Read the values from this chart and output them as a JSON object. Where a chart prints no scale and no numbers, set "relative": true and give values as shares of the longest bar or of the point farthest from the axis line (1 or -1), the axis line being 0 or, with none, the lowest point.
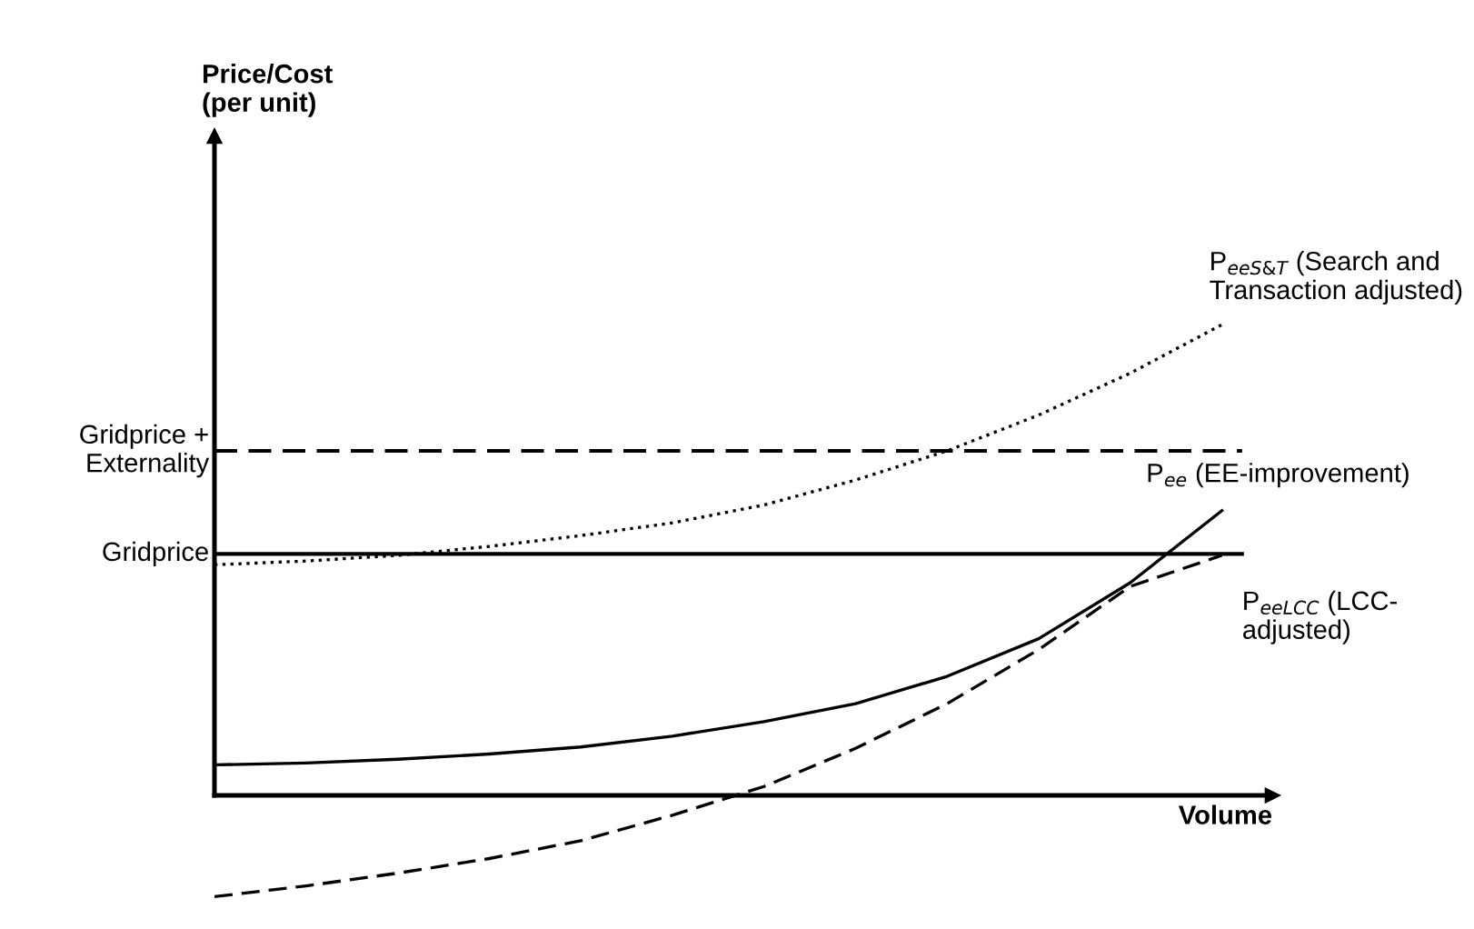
{
  "chart_data": {
    "type": "line",
    "relative": true,
    "xlabel": "Volume",
    "annotations": [
      "Price/Cost\n(per unit)"
    ],
    "categories": [
      null,
      null,
      null,
      null,
      null,
      null,
      null,
      null,
      null,
      null,
      null,
      null
    ],
    "series": [
      {
        "name": "P$_{eeS&T}$ (Search and\nTransaction adjusted)",
        "color": "#000000",
        "line_style": "dotted",
        "values": [
          0.49,
          0.498,
          0.51,
          0.529,
          0.552,
          0.579,
          0.617,
          0.67,
          0.732,
          0.808,
          0.897,
          1.0
        ]
      },
      {
        "name": "P$_{ee}$ (EE-improvement)",
        "color": "#000000",
        "line_style": "solid",
        "values": [
          0.065,
          0.069,
          0.077,
          0.088,
          0.103,
          0.126,
          0.157,
          0.195,
          0.253,
          0.333,
          0.452,
          0.605
        ]
      },
      {
        "name": "P$_{eeLCC}$ (LCC-\nadjusted)",
        "color": "#000000",
        "line_style": "dashed",
        "values": [
          -0.215,
          -0.192,
          -0.165,
          -0.134,
          -0.096,
          -0.042,
          0.019,
          0.1,
          0.195,
          0.31,
          0.444,
          0.51
        ]
      }
    ],
    "ref_lines": [
      {
        "axis": "y",
        "value": 0.732,
        "label": "Gridprice +\nExternality",
        "color": "#000000",
        "line_style": "dashed"
      },
      {
        "axis": "y",
        "value": 0.513,
        "label": "Gridprice",
        "color": "#000000",
        "line_style": "solid"
      }
    ],
    "legend": false,
    "marker": "none"
  }
}
